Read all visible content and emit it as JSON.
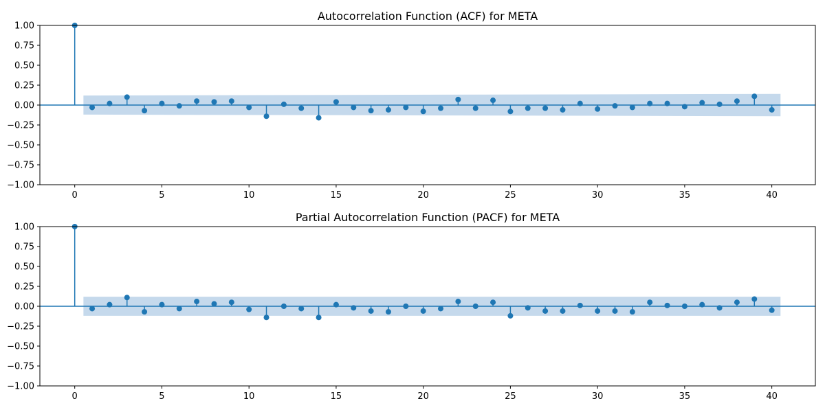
{
  "chart_data": [
    {
      "type": "stem",
      "title": "Autocorrelation Function (ACF) for META",
      "xlabel": "",
      "ylabel": "",
      "xlim": [
        -2,
        42.5
      ],
      "ylim": [
        -1.0,
        1.0
      ],
      "xticks": [
        0,
        5,
        10,
        15,
        20,
        25,
        30,
        35,
        40
      ],
      "yticks": [
        -1.0,
        -0.75,
        -0.5,
        -0.25,
        0.0,
        0.25,
        0.5,
        0.75,
        1.0
      ],
      "xtick_labels": [
        "0",
        "5",
        "10",
        "15",
        "20",
        "25",
        "30",
        "35",
        "40"
      ],
      "ytick_labels": [
        "−1.00",
        "−0.75",
        "−0.50",
        "−0.25",
        "0.00",
        "0.25",
        "0.50",
        "0.75",
        "1.00"
      ],
      "grid": false,
      "color": "#1f77b4",
      "band_color": "#c5d9ec",
      "lags": [
        0,
        1,
        2,
        3,
        4,
        5,
        6,
        7,
        8,
        9,
        10,
        11,
        12,
        13,
        14,
        15,
        16,
        17,
        18,
        19,
        20,
        21,
        22,
        23,
        24,
        25,
        26,
        27,
        28,
        29,
        30,
        31,
        32,
        33,
        34,
        35,
        36,
        37,
        38,
        39,
        40
      ],
      "values": [
        1.0,
        -0.03,
        0.02,
        0.1,
        -0.07,
        0.02,
        -0.01,
        0.05,
        0.04,
        0.05,
        -0.03,
        -0.14,
        0.01,
        -0.04,
        -0.16,
        0.04,
        -0.03,
        -0.07,
        -0.06,
        -0.03,
        -0.08,
        -0.04,
        0.07,
        -0.04,
        0.06,
        -0.08,
        -0.04,
        -0.04,
        -0.06,
        0.02,
        -0.05,
        -0.01,
        -0.03,
        0.02,
        0.02,
        -0.02,
        0.03,
        0.01,
        0.05,
        0.11,
        -0.06
      ],
      "conf_lag_start": 0.5,
      "conf_lag_end": 40.5,
      "conf_start": 0.12,
      "conf_end": 0.14
    },
    {
      "type": "stem",
      "title": "Partial Autocorrelation Function (PACF) for META",
      "xlabel": "",
      "ylabel": "",
      "xlim": [
        -2,
        42.5
      ],
      "ylim": [
        -1.0,
        1.0
      ],
      "xticks": [
        0,
        5,
        10,
        15,
        20,
        25,
        30,
        35,
        40
      ],
      "yticks": [
        -1.0,
        -0.75,
        -0.5,
        -0.25,
        0.0,
        0.25,
        0.5,
        0.75,
        1.0
      ],
      "xtick_labels": [
        "0",
        "5",
        "10",
        "15",
        "20",
        "25",
        "30",
        "35",
        "40"
      ],
      "ytick_labels": [
        "−1.00",
        "−0.75",
        "−0.50",
        "−0.25",
        "0.00",
        "0.25",
        "0.50",
        "0.75",
        "1.00"
      ],
      "grid": false,
      "color": "#1f77b4",
      "band_color": "#c5d9ec",
      "lags": [
        0,
        1,
        2,
        3,
        4,
        5,
        6,
        7,
        8,
        9,
        10,
        11,
        12,
        13,
        14,
        15,
        16,
        17,
        18,
        19,
        20,
        21,
        22,
        23,
        24,
        25,
        26,
        27,
        28,
        29,
        30,
        31,
        32,
        33,
        34,
        35,
        36,
        37,
        38,
        39,
        40
      ],
      "values": [
        1.0,
        -0.03,
        0.02,
        0.11,
        -0.07,
        0.02,
        -0.03,
        0.06,
        0.03,
        0.05,
        -0.04,
        -0.14,
        0.0,
        -0.03,
        -0.14,
        0.02,
        -0.02,
        -0.06,
        -0.07,
        0.0,
        -0.06,
        -0.03,
        0.06,
        0.0,
        0.05,
        -0.12,
        -0.02,
        -0.06,
        -0.06,
        0.01,
        -0.06,
        -0.06,
        -0.07,
        0.05,
        0.01,
        0.0,
        0.02,
        -0.02,
        0.05,
        0.09,
        -0.05
      ],
      "conf_lag_start": 0.5,
      "conf_lag_end": 40.5,
      "conf_start": 0.12,
      "conf_end": 0.12
    }
  ]
}
